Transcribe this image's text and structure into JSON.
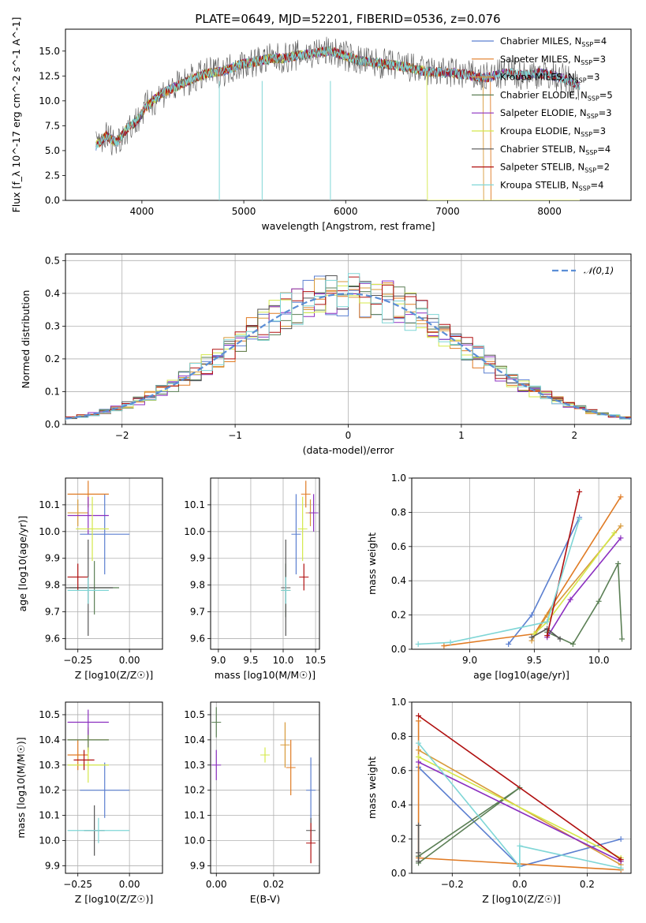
{
  "figure": {
    "title": "PLATE=0649, MJD=52201, FIBERID=0536, z=0.076"
  },
  "series": [
    {
      "name": "Chabrier MILES",
      "nssp": "4",
      "color": "#5b7fd0"
    },
    {
      "name": "Salpeter MILES",
      "nssp": "3",
      "color": "#e07b24"
    },
    {
      "name": "Kroupa MILES",
      "nssp": "3",
      "color": "#d89a3a"
    },
    {
      "name": "Chabrier ELODIE",
      "nssp": "5",
      "color": "#5b7f55"
    },
    {
      "name": "Salpeter ELODIE",
      "nssp": "3",
      "color": "#8b2fc0"
    },
    {
      "name": "Kroupa ELODIE",
      "nssp": "3",
      "color": "#d4e84a"
    },
    {
      "name": "Chabrier STELIB",
      "nssp": "4",
      "color": "#555555"
    },
    {
      "name": "Salpeter STELIB",
      "nssp": "2",
      "color": "#b01010"
    },
    {
      "name": "Kroupa STELIB",
      "nssp": "4",
      "color": "#7fd6d6"
    }
  ],
  "chart_data": [
    {
      "id": "spectrum",
      "type": "line",
      "title": "PLATE=0649, MJD=52201, FIBERID=0536, z=0.076",
      "xlabel": "wavelength [Angstrom, rest frame]",
      "ylabel": "Flux [f_λ 10^-17 erg cm^-2 s^-1 A^-1]",
      "xlim": [
        3250,
        8800
      ],
      "ylim": [
        0,
        17.2
      ],
      "xticks": [
        "4000",
        "5000",
        "6000",
        "7000",
        "8000"
      ],
      "yticks": [
        "0.0",
        "2.5",
        "5.0",
        "7.5",
        "10.0",
        "12.5",
        "15.0"
      ],
      "grid": false,
      "legend": "top-right",
      "wavelength": [
        3550,
        3650,
        3750,
        3850,
        3950,
        4050,
        4200,
        4350,
        4500,
        4650,
        4800,
        4950,
        5100,
        5250,
        5400,
        5550,
        5700,
        5850,
        6000,
        6150,
        6300,
        6450,
        6600,
        6750,
        6900,
        7050,
        7200,
        7350,
        7450,
        7600,
        7750,
        7900,
        8000,
        8150,
        8300
      ],
      "flux": [
        5.5,
        6.5,
        5.8,
        7.2,
        8.0,
        9.5,
        10.8,
        11.5,
        12.2,
        12.8,
        13.0,
        13.6,
        13.9,
        14.2,
        14.3,
        14.6,
        14.8,
        15.0,
        14.5,
        14.0,
        13.8,
        13.6,
        13.4,
        13.0,
        12.9,
        12.8,
        12.6,
        12.3,
        12.5,
        12.8,
        12.6,
        12.8,
        12.6,
        12.2,
        11.5
      ]
    },
    {
      "id": "residuals",
      "type": "histogram",
      "xlabel": "(data-model)/error",
      "ylabel": "Normed distribution",
      "xlim": [
        -2.5,
        2.5
      ],
      "ylim": [
        0,
        0.52
      ],
      "xticks": [
        "−2",
        "−1",
        "0",
        "1",
        "2"
      ],
      "yticks": [
        "0.0",
        "0.1",
        "0.2",
        "0.3",
        "0.4",
        "0.5"
      ],
      "grid": true,
      "legend": "top-right",
      "legend_label": "𝒩(0,1)",
      "bin_width": 0.1
    },
    {
      "id": "age-vs-Z",
      "type": "scatter",
      "xlabel": "Z [log10(Z/Z☉)]",
      "ylabel": "age  [log10(age/yr)]",
      "xlim": [
        -0.31,
        0.16
      ],
      "ylim": [
        9.56,
        10.2
      ],
      "xticks": [
        "−0.25",
        "0.00"
      ],
      "yticks": [
        "9.6",
        "9.7",
        "9.8",
        "9.9",
        "10.0",
        "10.1"
      ],
      "grid": true,
      "points": [
        {
          "x": -0.12,
          "y": 9.99,
          "xerr": 0.12,
          "yerr": 0.15
        },
        {
          "x": -0.2,
          "y": 10.14,
          "xerr": 0.1,
          "yerr": 0.05
        },
        {
          "x": -0.25,
          "y": 10.07,
          "xerr": 0.05,
          "yerr": 0.05
        },
        {
          "x": -0.17,
          "y": 9.79,
          "xerr": 0.12,
          "yerr": 0.1
        },
        {
          "x": -0.2,
          "y": 10.06,
          "xerr": 0.1,
          "yerr": 0.07
        },
        {
          "x": -0.18,
          "y": 10.01,
          "xerr": 0.08,
          "yerr": 0.12
        },
        {
          "x": -0.2,
          "y": 9.79,
          "xerr": 0.12,
          "yerr": 0.18
        },
        {
          "x": -0.25,
          "y": 9.83,
          "xerr": 0.05,
          "yerr": 0.05
        },
        {
          "x": -0.2,
          "y": 9.78,
          "xerr": 0.1,
          "yerr": 0.05
        }
      ]
    },
    {
      "id": "age-vs-mass",
      "type": "scatter",
      "xlabel": "mass [log10(M/M☉)]",
      "ylabel": "",
      "xlim": [
        8.88,
        10.56
      ],
      "ylim": [
        9.56,
        10.2
      ],
      "xticks": [
        "9.0",
        "9.5",
        "10.0",
        "10.5"
      ],
      "yticks": [
        "9.6",
        "9.7",
        "9.8",
        "9.9",
        "10.0",
        "10.1"
      ],
      "grid": true,
      "points": [
        {
          "x": 10.2,
          "y": 9.99,
          "yerr": 0.15
        },
        {
          "x": 10.35,
          "y": 10.14,
          "yerr": 0.05
        },
        {
          "x": 10.42,
          "y": 10.07,
          "yerr": 0.05
        },
        {
          "x": 10.04,
          "y": 9.78,
          "yerr": 0.1
        },
        {
          "x": 10.47,
          "y": 10.07,
          "yerr": 0.07
        },
        {
          "x": 10.3,
          "y": 10.01,
          "yerr": 0.12
        },
        {
          "x": 10.04,
          "y": 9.79,
          "yerr": 0.18
        },
        {
          "x": 10.32,
          "y": 9.83,
          "yerr": 0.05
        },
        {
          "x": 10.04,
          "y": 9.78,
          "yerr": 0.05
        }
      ]
    },
    {
      "id": "weight-vs-age",
      "type": "line",
      "xlabel": "age  [log10(age/yr)]",
      "ylabel": "mass weight",
      "xlim": [
        8.55,
        10.25
      ],
      "ylim": [
        0,
        1.0
      ],
      "xticks": [
        "9.0",
        "9.5",
        "10.0"
      ],
      "yticks": [
        "0.0",
        "0.2",
        "0.4",
        "0.6",
        "0.8",
        "1.0"
      ],
      "grid": true,
      "series": [
        {
          "name": "Chabrier MILES",
          "x": [
            9.3,
            9.48,
            9.85
          ],
          "y": [
            0.03,
            0.2,
            0.77
          ]
        },
        {
          "name": "Salpeter MILES",
          "x": [
            8.8,
            9.5,
            10.17
          ],
          "y": [
            0.02,
            0.09,
            0.89
          ]
        },
        {
          "name": "Kroupa MILES",
          "x": [
            9.48,
            9.6,
            10.17
          ],
          "y": [
            0.05,
            0.2,
            0.72
          ]
        },
        {
          "name": "Chabrier ELODIE",
          "x": [
            9.6,
            9.8,
            10.0,
            10.15,
            10.18
          ],
          "y": [
            0.1,
            0.03,
            0.28,
            0.5,
            0.06
          ]
        },
        {
          "name": "Salpeter ELODIE",
          "x": [
            9.6,
            9.78,
            10.17
          ],
          "y": [
            0.07,
            0.29,
            0.65
          ]
        },
        {
          "name": "Kroupa ELODIE",
          "x": [
            9.5,
            9.6,
            10.12
          ],
          "y": [
            0.09,
            0.16,
            0.68
          ]
        },
        {
          "name": "Chabrier STELIB",
          "x": [
            9.48,
            9.6,
            9.7
          ],
          "y": [
            0.07,
            0.12,
            0.06
          ]
        },
        {
          "name": "Salpeter STELIB",
          "x": [
            9.6,
            9.85
          ],
          "y": [
            0.08,
            0.92
          ]
        },
        {
          "name": "Kroupa STELIB",
          "x": [
            8.6,
            8.85,
            9.6,
            9.85
          ],
          "y": [
            0.03,
            0.04,
            0.16,
            0.76
          ]
        }
      ]
    },
    {
      "id": "mass-vs-Z",
      "type": "scatter",
      "xlabel": "Z [log10(Z/Z☉)]",
      "ylabel": "mass [log10(M/M☉)]",
      "xlim": [
        -0.31,
        0.16
      ],
      "ylim": [
        9.87,
        10.55
      ],
      "xticks": [
        "−0.25",
        "0.00"
      ],
      "yticks": [
        "9.9",
        "10.0",
        "10.1",
        "10.2",
        "10.3",
        "10.4",
        "10.5"
      ],
      "grid": true,
      "points": [
        {
          "x": -0.12,
          "y": 10.2,
          "xerr": 0.12,
          "yerr": 0.11
        },
        {
          "x": -0.25,
          "y": 10.34,
          "xerr": 0.05,
          "yerr": 0.06
        },
        {
          "x": -0.2,
          "y": 10.4,
          "xerr": 0.1,
          "yerr": 0.05
        },
        {
          "x": -0.2,
          "y": 10.4,
          "xerr": 0.1,
          "yerr": 0.04
        },
        {
          "x": -0.2,
          "y": 10.47,
          "xerr": 0.1,
          "yerr": 0.05
        },
        {
          "x": -0.2,
          "y": 10.3,
          "xerr": 0.1,
          "yerr": 0.07
        },
        {
          "x": -0.17,
          "y": 10.04,
          "xerr": 0.05,
          "yerr": 0.1
        },
        {
          "x": -0.22,
          "y": 10.32,
          "xerr": 0.05,
          "yerr": 0.04
        },
        {
          "x": -0.15,
          "y": 10.04,
          "xerr": 0.15,
          "yerr": 0.05
        }
      ]
    },
    {
      "id": "mass-vs-ebv",
      "type": "scatter",
      "xlabel": "E(B-V)",
      "ylabel": "",
      "xlim": [
        -0.002,
        0.036
      ],
      "ylim": [
        9.87,
        10.55
      ],
      "xticks": [
        "0.00",
        "0.02"
      ],
      "yticks": [
        "9.9",
        "10.0",
        "10.1",
        "10.2",
        "10.3",
        "10.4",
        "10.5"
      ],
      "grid": true,
      "points": [
        {
          "x": 0.033,
          "y": 10.2,
          "yerr": 0.13
        },
        {
          "x": 0.026,
          "y": 10.29,
          "yerr": 0.11
        },
        {
          "x": 0.024,
          "y": 10.38,
          "yerr": 0.09
        },
        {
          "x": 0.0,
          "y": 10.47,
          "yerr": 0.06
        },
        {
          "x": 0.0,
          "y": 10.3,
          "yerr": 0.06
        },
        {
          "x": 0.017,
          "y": 10.34,
          "yerr": 0.03
        },
        {
          "x": 0.033,
          "y": 10.04,
          "yerr": 0.05
        },
        {
          "x": 0.033,
          "y": 9.99,
          "yerr": 0.08
        }
      ]
    },
    {
      "id": "weight-vs-Z",
      "type": "line",
      "xlabel": "Z [log10(Z/Z☉)]",
      "ylabel": "mass weight",
      "xlim": [
        -0.32,
        0.33
      ],
      "ylim": [
        0,
        1.0
      ],
      "xticks": [
        "−0.2",
        "0.0",
        "0.2"
      ],
      "yticks": [
        "0.0",
        "0.2",
        "0.4",
        "0.6",
        "0.8",
        "1.0"
      ],
      "grid": true,
      "series": [
        {
          "name": "Chabrier MILES",
          "x": [
            -0.3,
            0.0,
            0.3
          ],
          "y": [
            0.62,
            0.04,
            0.2
          ]
        },
        {
          "name": "Salpeter MILES",
          "x": [
            -0.3,
            -0.3,
            0.3
          ],
          "y": [
            0.89,
            0.09,
            0.02
          ]
        },
        {
          "name": "Kroupa MILES",
          "x": [
            -0.3,
            0.3
          ],
          "y": [
            0.72,
            0.05
          ]
        },
        {
          "name": "Chabrier ELODIE",
          "x": [
            -0.3,
            0.0,
            -0.3
          ],
          "y": [
            0.06,
            0.5,
            0.1
          ]
        },
        {
          "name": "Salpeter ELODIE",
          "x": [
            -0.3,
            0.3
          ],
          "y": [
            0.65,
            0.07
          ]
        },
        {
          "name": "Kroupa ELODIE",
          "x": [
            -0.3,
            0.3
          ],
          "y": [
            0.68,
            0.09
          ]
        },
        {
          "name": "Chabrier STELIB",
          "x": [
            -0.3,
            -0.3,
            -0.3
          ],
          "y": [
            0.07,
            0.12,
            0.28
          ]
        },
        {
          "name": "Salpeter STELIB",
          "x": [
            -0.3,
            0.3
          ],
          "y": [
            0.92,
            0.08
          ]
        },
        {
          "name": "Kroupa STELIB",
          "x": [
            -0.3,
            0.0,
            0.0,
            0.3
          ],
          "y": [
            0.76,
            0.04,
            0.16,
            0.03
          ]
        }
      ]
    }
  ]
}
